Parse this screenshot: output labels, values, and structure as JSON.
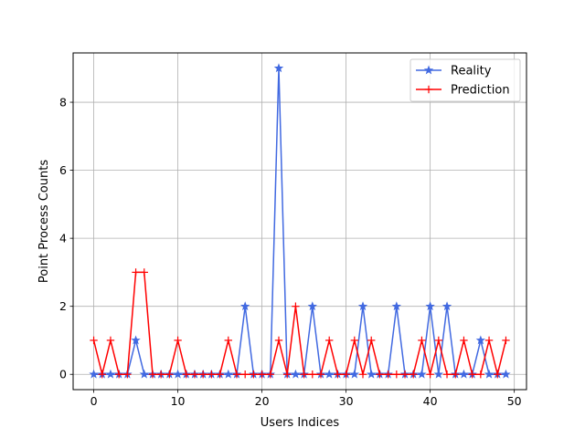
{
  "chart_data": {
    "type": "line",
    "title": "",
    "xlabel": "Users Indices",
    "ylabel": "Point Process Counts",
    "xlim": [
      -2.45,
      51.45
    ],
    "ylim": [
      -0.45,
      9.45
    ],
    "xticks": [
      0,
      10,
      20,
      30,
      40,
      50
    ],
    "yticks": [
      0,
      2,
      4,
      6,
      8
    ],
    "grid": true,
    "legend_position": "top-right",
    "x": [
      0,
      1,
      2,
      3,
      4,
      5,
      6,
      7,
      8,
      9,
      10,
      11,
      12,
      13,
      14,
      15,
      16,
      17,
      18,
      19,
      20,
      21,
      22,
      23,
      24,
      25,
      26,
      27,
      28,
      29,
      30,
      31,
      32,
      33,
      34,
      35,
      36,
      37,
      38,
      39,
      40,
      41,
      42,
      43,
      44,
      45,
      46,
      47,
      48,
      49
    ],
    "series": [
      {
        "name": "Reality",
        "color": "#4169e1",
        "marker": "star",
        "values": [
          0,
          0,
          0,
          0,
          0,
          1,
          0,
          0,
          0,
          0,
          0,
          0,
          0,
          0,
          0,
          0,
          0,
          0,
          2,
          0,
          0,
          0,
          9,
          0,
          0,
          0,
          2,
          0,
          0,
          0,
          0,
          0,
          2,
          0,
          0,
          0,
          2,
          0,
          0,
          0,
          2,
          0,
          2,
          0,
          0,
          0,
          1,
          0,
          0,
          0
        ]
      },
      {
        "name": "Prediction",
        "color": "#ff0000",
        "marker": "plus",
        "values": [
          1,
          0,
          1,
          0,
          0,
          3,
          3,
          0,
          0,
          0,
          1,
          0,
          0,
          0,
          0,
          0,
          1,
          0,
          0,
          0,
          0,
          0,
          1,
          0,
          2,
          0,
          0,
          0,
          1,
          0,
          0,
          1,
          0,
          1,
          0,
          0,
          0,
          0,
          0,
          1,
          0,
          1,
          0,
          0,
          1,
          0,
          0,
          1,
          0,
          1
        ]
      }
    ]
  }
}
